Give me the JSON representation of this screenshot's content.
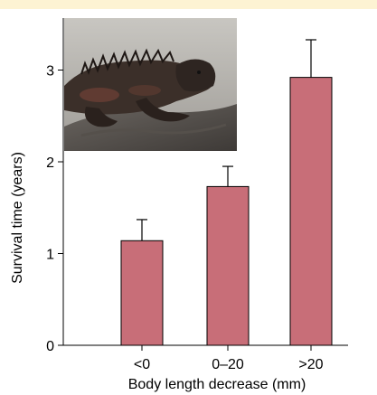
{
  "chart_data": {
    "type": "bar",
    "title": "",
    "xlabel": "Body length decrease (mm)",
    "ylabel": "Survival time (years)",
    "categories": [
      "<0",
      "0–20",
      ">20"
    ],
    "values": [
      1.14,
      1.73,
      2.92
    ],
    "error_upper": [
      1.37,
      1.95,
      3.33
    ],
    "ylim": [
      0,
      3.5
    ],
    "yticks": [
      "0",
      "1",
      "2",
      "3"
    ],
    "grid": false,
    "bar_color": "#c86e78",
    "bar_edge_color": "#000000"
  },
  "inset_photo": {
    "subject": "marine iguana on rock",
    "icon": "iguana-photo"
  }
}
